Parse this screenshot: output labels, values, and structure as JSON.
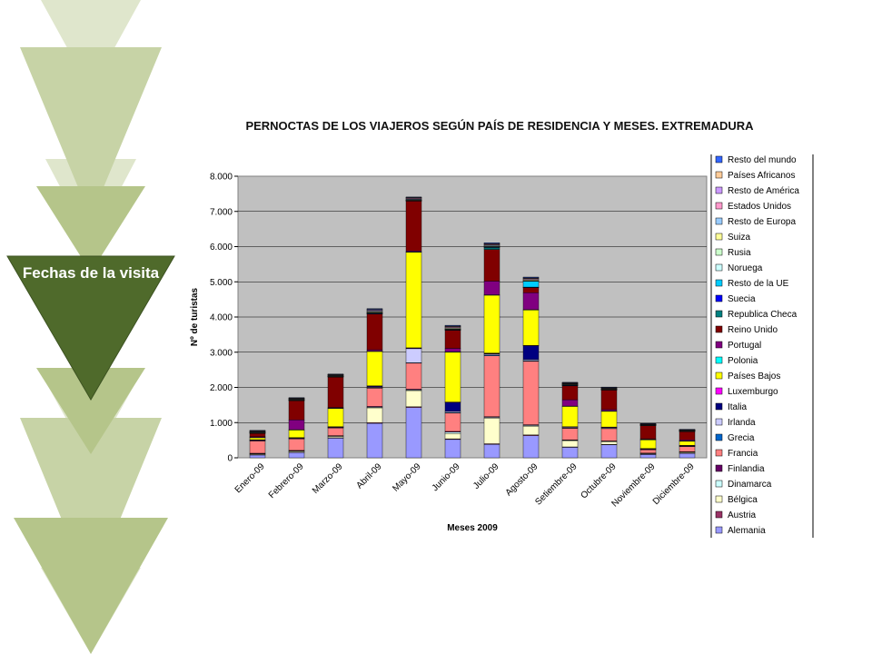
{
  "slide": {
    "label": "Fechas de la visita"
  },
  "chart_data": {
    "type": "bar",
    "stacked": true,
    "title": "PERNOCTAS DE LOS VIAJEROS SEGÚN PAÍS DE RESIDENCIA Y MESES. EXTREMADURA",
    "xlabel": "Meses 2009",
    "ylabel": "Nº de turistas",
    "ylim": [
      0,
      8000
    ],
    "yticks": [
      "0",
      "1.000",
      "2.000",
      "3.000",
      "4.000",
      "5.000",
      "6.000",
      "7.000",
      "8.000"
    ],
    "categories": [
      "Enero-09",
      "Febrero-09",
      "Marzo-09",
      "Abril-09",
      "Mayo-09",
      "Junio-09",
      "Julio-09",
      "Agosto-09",
      "Setiembre-09",
      "Octubre-09",
      "Noviembre-09",
      "Diciembre-09"
    ],
    "grid": true,
    "legend_position": "right",
    "series": [
      {
        "name": "Alemania",
        "color": "#9999ff",
        "values": [
          80,
          150,
          560,
          980,
          1430,
          520,
          380,
          630,
          300,
          370,
          100,
          130
        ]
      },
      {
        "name": "Austria",
        "color": "#993366",
        "values": [
          10,
          10,
          10,
          20,
          20,
          20,
          20,
          20,
          10,
          10,
          5,
          5
        ]
      },
      {
        "name": "Bélgica",
        "color": "#ffffcc",
        "values": [
          20,
          30,
          40,
          420,
          460,
          150,
          730,
          250,
          180,
          80,
          20,
          30
        ]
      },
      {
        "name": "Dinamarca",
        "color": "#ccffff",
        "values": [
          10,
          10,
          10,
          20,
          20,
          40,
          20,
          20,
          10,
          10,
          5,
          5
        ]
      },
      {
        "name": "Finlandia",
        "color": "#660066",
        "values": [
          10,
          10,
          10,
          20,
          20,
          20,
          20,
          20,
          10,
          10,
          5,
          5
        ]
      },
      {
        "name": "Francia",
        "color": "#ff8080",
        "values": [
          350,
          330,
          220,
          520,
          740,
          520,
          1730,
          1800,
          330,
          350,
          100,
          150
        ]
      },
      {
        "name": "Grecia",
        "color": "#0066cc",
        "values": [
          10,
          10,
          10,
          10,
          10,
          20,
          20,
          20,
          10,
          10,
          5,
          5
        ]
      },
      {
        "name": "Irlanda",
        "color": "#ccccff",
        "values": [
          10,
          10,
          10,
          20,
          400,
          30,
          30,
          30,
          20,
          20,
          10,
          10
        ]
      },
      {
        "name": "Italia",
        "color": "#000080",
        "values": [
          10,
          10,
          10,
          30,
          20,
          260,
          20,
          400,
          10,
          10,
          10,
          10
        ]
      },
      {
        "name": "Luxemburgo",
        "color": "#ff00ff",
        "values": [
          5,
          5,
          5,
          5,
          5,
          5,
          5,
          5,
          5,
          5,
          5,
          5
        ]
      },
      {
        "name": "Países Bajos",
        "color": "#ffff00",
        "values": [
          60,
          220,
          520,
          980,
          2720,
          1420,
          1650,
          1010,
          580,
          450,
          250,
          120
        ]
      },
      {
        "name": "Polonia",
        "color": "#00ffff",
        "values": [
          5,
          5,
          5,
          5,
          5,
          5,
          5,
          5,
          5,
          5,
          5,
          5
        ]
      },
      {
        "name": "Portugal",
        "color": "#800080",
        "values": [
          20,
          280,
          20,
          40,
          30,
          100,
          390,
          480,
          180,
          40,
          20,
          30
        ]
      },
      {
        "name": "Reino Unido",
        "color": "#800000",
        "values": [
          100,
          550,
          870,
          1020,
          1420,
          520,
          900,
          150,
          400,
          560,
          380,
          240
        ]
      },
      {
        "name": "Republica Checa",
        "color": "#008080",
        "values": [
          5,
          5,
          5,
          5,
          5,
          5,
          50,
          5,
          5,
          5,
          5,
          5
        ]
      },
      {
        "name": "Suecia",
        "color": "#0000ff",
        "values": [
          5,
          5,
          5,
          5,
          5,
          5,
          5,
          5,
          5,
          5,
          5,
          5
        ]
      },
      {
        "name": "Resto de la UE",
        "color": "#00ccff",
        "values": [
          5,
          5,
          5,
          20,
          5,
          10,
          20,
          170,
          20,
          5,
          5,
          5
        ]
      },
      {
        "name": "Noruega",
        "color": "#ccffff",
        "values": [
          5,
          5,
          5,
          5,
          5,
          5,
          5,
          5,
          5,
          5,
          5,
          5
        ]
      },
      {
        "name": "Rusia",
        "color": "#ccffcc",
        "values": [
          5,
          5,
          5,
          5,
          5,
          5,
          5,
          5,
          5,
          5,
          5,
          5
        ]
      },
      {
        "name": "Suiza",
        "color": "#ffff99",
        "values": [
          10,
          10,
          10,
          20,
          10,
          20,
          20,
          20,
          10,
          10,
          5,
          10
        ]
      },
      {
        "name": "Resto de Europa",
        "color": "#99ccff",
        "values": [
          10,
          10,
          10,
          20,
          20,
          20,
          20,
          20,
          10,
          10,
          5,
          5
        ]
      },
      {
        "name": "Estados Unidos",
        "color": "#ff99cc",
        "values": [
          10,
          10,
          10,
          20,
          20,
          20,
          20,
          20,
          10,
          10,
          5,
          5
        ]
      },
      {
        "name": "Resto de América",
        "color": "#cc99ff",
        "values": [
          10,
          10,
          10,
          20,
          20,
          20,
          20,
          20,
          10,
          10,
          5,
          5
        ]
      },
      {
        "name": "Países Africanos",
        "color": "#ffcc99",
        "values": [
          5,
          5,
          5,
          10,
          5,
          5,
          5,
          5,
          5,
          5,
          5,
          5
        ]
      },
      {
        "name": "Resto del mundo",
        "color": "#3366ff",
        "values": [
          10,
          10,
          10,
          20,
          10,
          20,
          20,
          20,
          10,
          10,
          5,
          5
        ]
      }
    ]
  }
}
